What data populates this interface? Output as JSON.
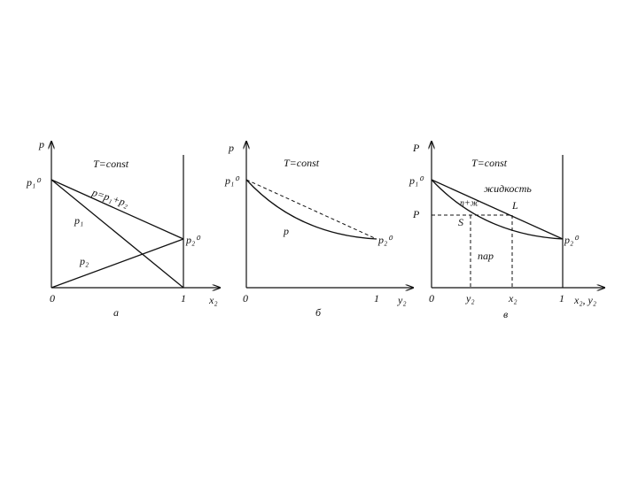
{
  "panels": [
    {
      "caption": "а",
      "y_axis": "p",
      "x_axis": "x₂",
      "condition": "T=const",
      "x_origin": "0",
      "x_end": "1",
      "labels": [
        "p₁⁰",
        "p=p₁+p₂",
        "p₁",
        "p₂",
        "p₂⁰"
      ]
    },
    {
      "caption": "б",
      "y_axis": "p",
      "x_axis": "y₂",
      "condition": "T=const",
      "x_origin": "0",
      "x_end": "1",
      "labels": [
        "p₁⁰",
        "p",
        "p₂⁰"
      ]
    },
    {
      "caption": "в",
      "y_axis": "P",
      "x_axis": "x₂, y₂",
      "condition": "T=const",
      "x_origin": "0",
      "x_end": "1",
      "labels": [
        "p₁⁰",
        "P",
        "жидкость",
        "п+ж",
        "L",
        "S",
        "p₂⁰",
        "пар",
        "y₂",
        "x₂"
      ]
    }
  ]
}
